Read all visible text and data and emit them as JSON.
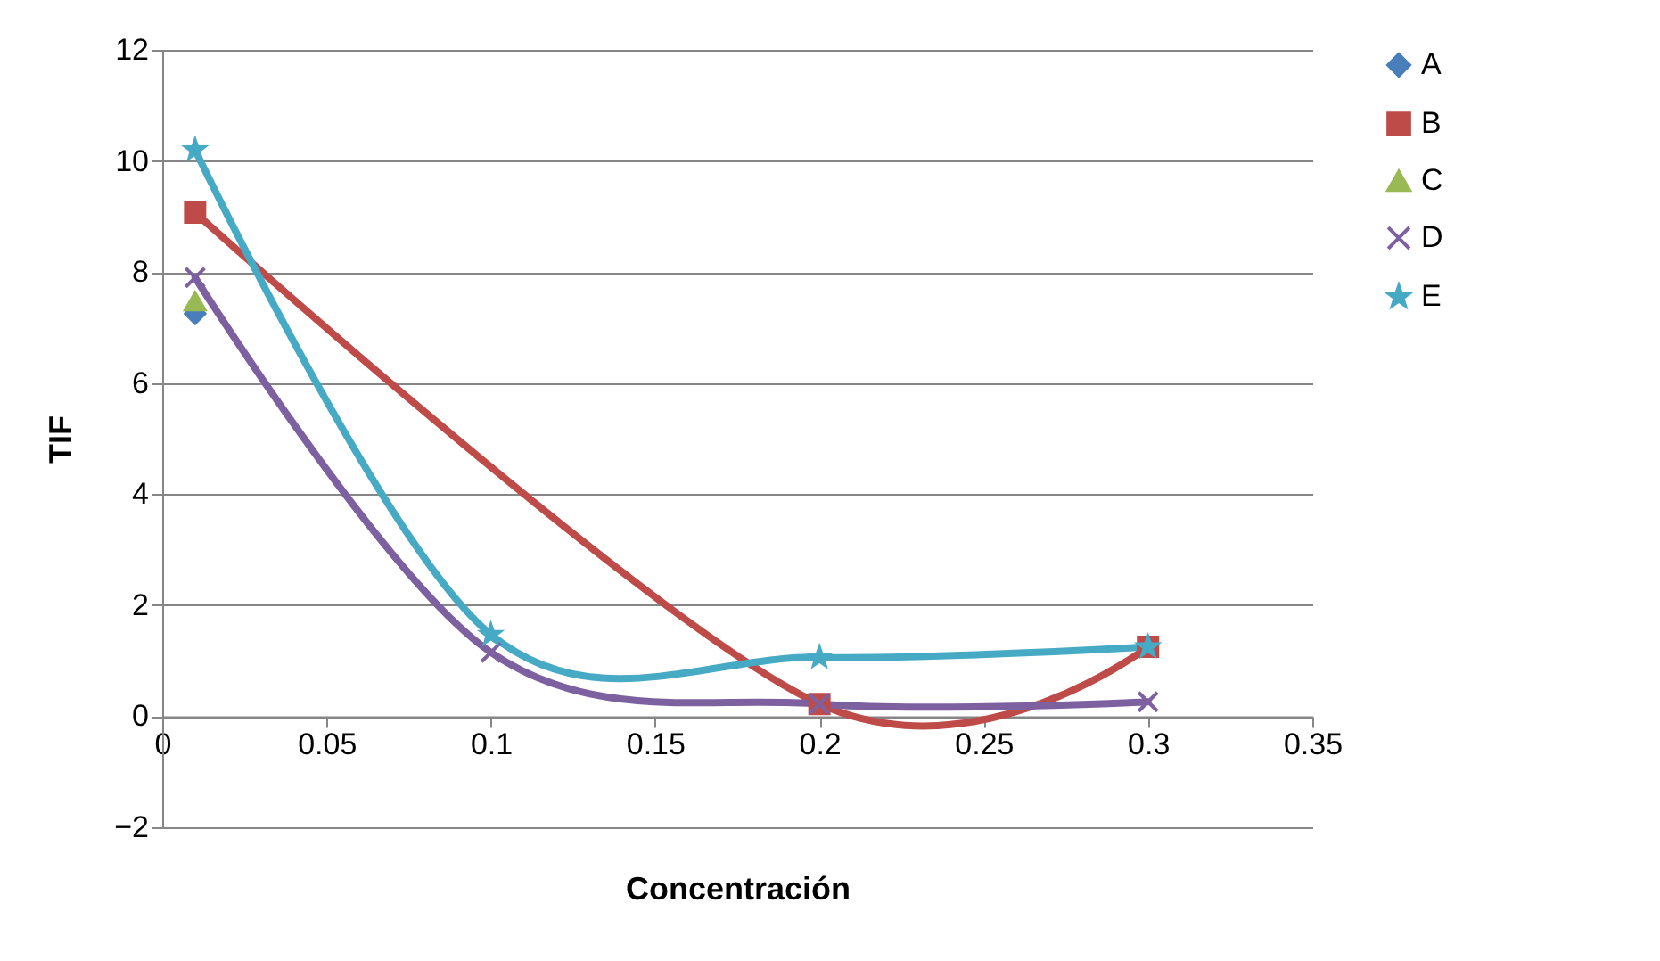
{
  "chart_data": {
    "type": "line",
    "xlabel": "Concentración",
    "ylabel": "TIF",
    "xlim": [
      0,
      0.35
    ],
    "xticks": [
      0,
      0.05,
      0.1,
      0.15,
      0.2,
      0.25,
      0.3,
      0.35
    ],
    "ylim": [
      -2,
      12
    ],
    "yticks": [
      -2,
      0,
      2,
      4,
      6,
      8,
      10,
      12
    ],
    "grid": "y",
    "legend": "right",
    "series": [
      {
        "name": "A",
        "color": "#4a7ebb",
        "marker": "diamond",
        "x": [
          0.01
        ],
        "values": [
          7.25
        ]
      },
      {
        "name": "B",
        "color": "#be4b48",
        "marker": "square",
        "x": [
          0.01,
          0.2,
          0.3
        ],
        "values": [
          9.07,
          0.22,
          1.25
        ]
      },
      {
        "name": "C",
        "color": "#98b954",
        "marker": "triangle",
        "x": [
          0.01
        ],
        "values": [
          7.47
        ]
      },
      {
        "name": "D",
        "color": "#7d60a0",
        "marker": "cross",
        "x": [
          0.01,
          0.1,
          0.2,
          0.3
        ],
        "values": [
          7.9,
          1.15,
          0.22,
          0.26
        ]
      },
      {
        "name": "E",
        "color": "#46aac5",
        "marker": "star",
        "x": [
          0.01,
          0.1,
          0.2,
          0.3
        ],
        "values": [
          10.2,
          1.47,
          1.06,
          1.25
        ]
      }
    ]
  }
}
